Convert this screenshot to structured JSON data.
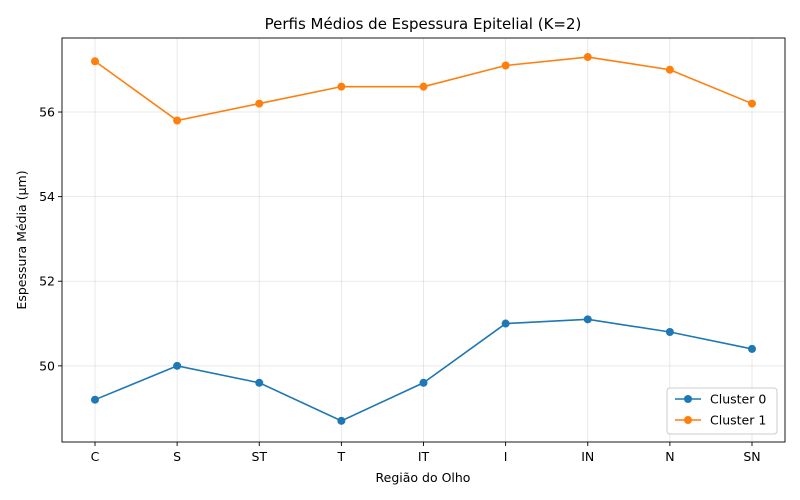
{
  "chart_data": {
    "type": "line",
    "title": "Perfis Médios de Espessura Epitelial (K=2)",
    "xlabel": "Região do Olho",
    "ylabel": "Espessura Média (µm)",
    "categories": [
      "C",
      "S",
      "ST",
      "T",
      "IT",
      "I",
      "IN",
      "N",
      "SN"
    ],
    "ylim": [
      48.2,
      57.75
    ],
    "yticks": [
      50,
      52,
      54,
      56
    ],
    "grid": true,
    "legend_position": "lower-right",
    "series": [
      {
        "name": "Cluster 0",
        "color": "#1f77b4",
        "values": [
          49.2,
          50.0,
          49.6,
          48.7,
          49.6,
          51.0,
          51.1,
          50.8,
          50.4
        ]
      },
      {
        "name": "Cluster 1",
        "color": "#ff7f0e",
        "values": [
          57.2,
          55.8,
          56.2,
          56.6,
          56.6,
          57.1,
          57.3,
          57.0,
          56.2
        ]
      }
    ]
  }
}
